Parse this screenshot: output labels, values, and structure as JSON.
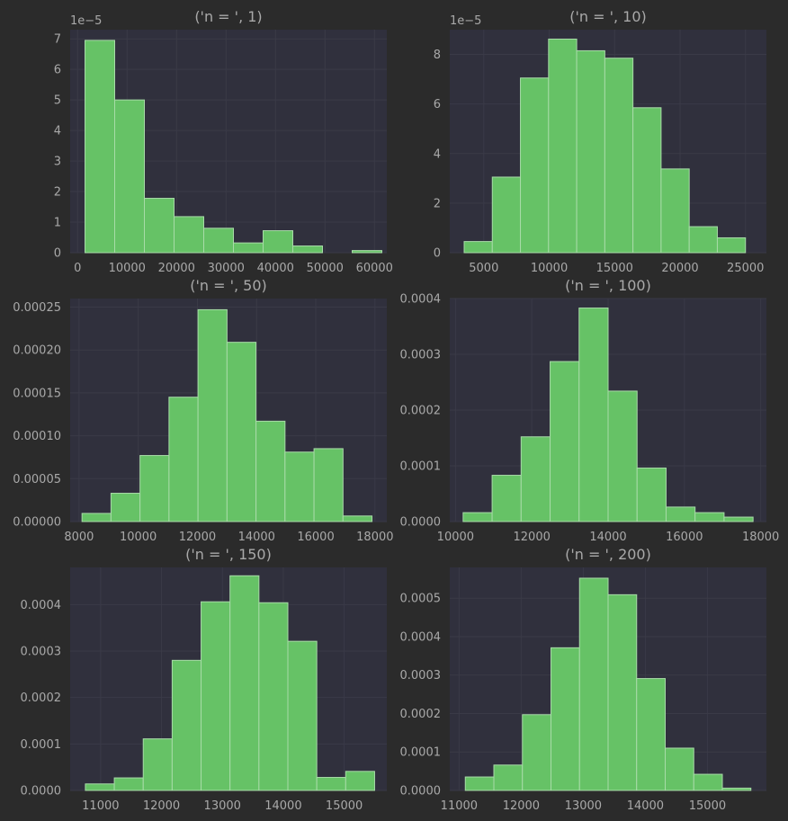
{
  "chart_data": [
    {
      "type": "bar",
      "title": "('n = ', 1)",
      "offset_label": "1e−5",
      "y_scale": 1e-05,
      "xlim": [
        -1500,
        62500
      ],
      "ylim": [
        0,
        7.3
      ],
      "xticks": [
        0,
        10000,
        20000,
        30000,
        40000,
        50000,
        60000
      ],
      "xtick_labels": [
        "0",
        "10000",
        "20000",
        "30000",
        "40000",
        "50000",
        "60000"
      ],
      "yticks": [
        0,
        1,
        2,
        3,
        4,
        5,
        6,
        7
      ],
      "ytick_labels": [
        "0",
        "1",
        "2",
        "3",
        "4",
        "5",
        "6",
        "7"
      ],
      "bin_edges": [
        1500,
        7500,
        13500,
        19500,
        25500,
        31500,
        37500,
        43500,
        49500,
        55500,
        61500
      ],
      "values": [
        6.95,
        5.0,
        1.78,
        1.18,
        0.8,
        0.32,
        0.72,
        0.22,
        0.0,
        0.07
      ],
      "grid": true
    },
    {
      "type": "bar",
      "title": "('n = ', 10)",
      "offset_label": "1e−5",
      "y_scale": 1e-05,
      "xlim": [
        2400,
        26600
      ],
      "ylim": [
        0,
        9.0
      ],
      "xticks": [
        5000,
        10000,
        15000,
        20000,
        25000
      ],
      "xtick_labels": [
        "5000",
        "10000",
        "15000",
        "20000",
        "25000"
      ],
      "yticks": [
        0,
        2,
        4,
        6,
        8
      ],
      "ytick_labels": [
        "0",
        "2",
        "4",
        "6",
        "8"
      ],
      "bin_edges": [
        3500,
        5650,
        7800,
        9950,
        12100,
        14250,
        16400,
        18550,
        20700,
        22850,
        25000
      ],
      "values": [
        0.45,
        3.05,
        7.05,
        8.62,
        8.15,
        7.85,
        5.85,
        3.38,
        1.05,
        0.6
      ],
      "grid": true
    },
    {
      "type": "bar",
      "title": "('n = ', 50)",
      "offset_label": "",
      "y_scale": 1,
      "xlim": [
        7700,
        18400
      ],
      "ylim": [
        0,
        0.00026
      ],
      "xticks": [
        8000,
        10000,
        12000,
        14000,
        16000,
        18000
      ],
      "xtick_labels": [
        "8000",
        "10000",
        "12000",
        "14000",
        "16000",
        "18000"
      ],
      "yticks": [
        0,
        5e-05,
        0.0001,
        0.00015,
        0.0002,
        0.00025
      ],
      "ytick_labels": [
        "0.00000",
        "0.00005",
        "0.00010",
        "0.00015",
        "0.00020",
        "0.00025"
      ],
      "bin_edges": [
        8100,
        9080,
        10060,
        11040,
        12020,
        13000,
        13980,
        14960,
        15940,
        16920,
        17900
      ],
      "values": [
        9.5e-06,
        3.3e-05,
        7.7e-05,
        0.000145,
        0.000247,
        0.000209,
        0.000117,
        8.1e-05,
        8.5e-05,
        6.5e-06
      ],
      "grid": true
    },
    {
      "type": "bar",
      "title": "('n = ', 100)",
      "offset_label": "",
      "y_scale": 1,
      "xlim": [
        9850,
        18150
      ],
      "ylim": [
        0,
        0.0004
      ],
      "xticks": [
        10000,
        12000,
        14000,
        16000,
        18000
      ],
      "xtick_labels": [
        "10000",
        "12000",
        "14000",
        "16000",
        "18000"
      ],
      "yticks": [
        0,
        0.0001,
        0.0002,
        0.0003,
        0.0004
      ],
      "ytick_labels": [
        "0.0000",
        "0.0001",
        "0.0002",
        "0.0003",
        "0.0004"
      ],
      "bin_edges": [
        10200,
        10960,
        11720,
        12480,
        13240,
        14000,
        14760,
        15520,
        16280,
        17040,
        17800
      ],
      "values": [
        1.6e-05,
        8.3e-05,
        0.000152,
        0.000287,
        0.000383,
        0.000234,
        9.6e-05,
        2.6e-05,
        1.6e-05,
        8e-06
      ],
      "grid": true
    },
    {
      "type": "bar",
      "title": "('n = ', 150)",
      "offset_label": "",
      "y_scale": 1,
      "xlim": [
        10500,
        15700
      ],
      "ylim": [
        0,
        0.00048
      ],
      "xticks": [
        11000,
        12000,
        13000,
        14000,
        15000
      ],
      "xtick_labels": [
        "11000",
        "12000",
        "13000",
        "14000",
        "15000"
      ],
      "yticks": [
        0,
        0.0001,
        0.0002,
        0.0003,
        0.0004
      ],
      "ytick_labels": [
        "0.0000",
        "0.0001",
        "0.0002",
        "0.0003",
        "0.0004"
      ],
      "bin_edges": [
        10750,
        11225,
        11700,
        12175,
        12650,
        13125,
        13600,
        14075,
        14550,
        15025,
        15500
      ],
      "values": [
        1.4e-05,
        2.7e-05,
        0.000111,
        0.00028,
        0.000406,
        0.000462,
        0.000404,
        0.000321,
        2.8e-05,
        4.1e-05
      ],
      "grid": true
    },
    {
      "type": "bar",
      "title": "('n = ', 200)",
      "offset_label": "",
      "y_scale": 1,
      "xlim": [
        10850,
        15950
      ],
      "ylim": [
        0,
        0.00058
      ],
      "xticks": [
        11000,
        12000,
        13000,
        14000,
        15000
      ],
      "xtick_labels": [
        "11000",
        "12000",
        "13000",
        "14000",
        "15000"
      ],
      "yticks": [
        0,
        0.0001,
        0.0002,
        0.0003,
        0.0004,
        0.0005
      ],
      "ytick_labels": [
        "0.0000",
        "0.0001",
        "0.0002",
        "0.0003",
        "0.0004",
        "0.0005"
      ],
      "bin_edges": [
        11100,
        11560,
        12020,
        12480,
        12940,
        13400,
        13860,
        14320,
        14780,
        15240,
        15700
      ],
      "values": [
        3.5e-05,
        6.6e-05,
        0.000197,
        0.000371,
        0.000552,
        0.000509,
        0.000291,
        0.00011,
        4.2e-05,
        6e-06
      ],
      "grid": true
    }
  ]
}
